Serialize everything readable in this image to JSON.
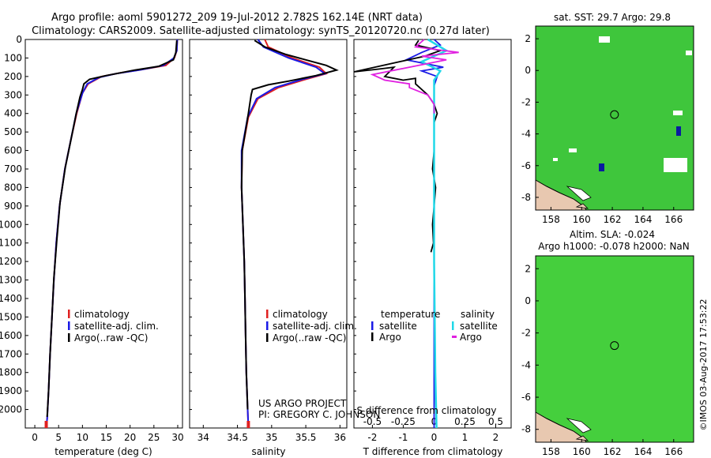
{
  "header": {
    "title_line1": "Argo profile: aoml 5901272_209 19-Jul-2012 2.782S 162.14E (NRT data)",
    "title_line2": "Climatology: CARS2009. Satellite-adjusted climatology: synTS_20120720.nc (0.27d later)"
  },
  "colors": {
    "climatology": "#e02020",
    "satellite": "#1a1ae6",
    "argo": "#000000",
    "argo_salinity": "#e020e0",
    "sat_salinity": "#20d8e8",
    "map_ocean": "#4ed24a",
    "land": "#e8c8b0"
  },
  "chart_data": [
    {
      "type": "line",
      "name": "temperature",
      "xlabel": "temperature (deg C)",
      "ylabel": "",
      "xlim": [
        -2,
        31
      ],
      "ylim": [
        2100,
        0
      ],
      "x_ticks": [
        "0",
        "5",
        "10",
        "15",
        "20",
        "25",
        "30"
      ],
      "y_ticks": [
        "0",
        "100",
        "200",
        "300",
        "400",
        "500",
        "600",
        "700",
        "800",
        "900",
        "1000",
        "1100",
        "1200",
        "1300",
        "1400",
        "1500",
        "1600",
        "1700",
        "1800",
        "1900",
        "2000"
      ],
      "legend": [
        "climatology",
        "satellite-adj. clim.",
        "Argo(..raw -QC)"
      ],
      "series": [
        {
          "name": "climatology",
          "points": [
            [
              29.9,
              0
            ],
            [
              29.8,
              60
            ],
            [
              29.3,
              100
            ],
            [
              27.5,
              140
            ],
            [
              23,
              160
            ],
            [
              18,
              180
            ],
            [
              14,
              200
            ],
            [
              11.2,
              240
            ],
            [
              10,
              290
            ],
            [
              8.8,
              400
            ],
            [
              7.5,
              550
            ],
            [
              6.3,
              700
            ],
            [
              5.2,
              900
            ],
            [
              4.5,
              1100
            ],
            [
              4,
              1300
            ],
            [
              3.6,
              1500
            ],
            [
              3.2,
              1700
            ],
            [
              2.9,
              1900
            ],
            [
              2.6,
              2050
            ],
            [
              2.4,
              2100
            ]
          ]
        },
        {
          "name": "satellite",
          "points": [
            [
              29.9,
              0
            ],
            [
              29.8,
              60
            ],
            [
              29.2,
              100
            ],
            [
              27,
              140
            ],
            [
              22,
              165
            ],
            [
              17,
              185
            ],
            [
              13.5,
              205
            ],
            [
              11,
              240
            ],
            [
              10,
              290
            ],
            [
              8.7,
              400
            ],
            [
              7.5,
              550
            ],
            [
              6.3,
              700
            ],
            [
              5.2,
              900
            ],
            [
              4.5,
              1100
            ],
            [
              4,
              1300
            ],
            [
              3.6,
              1500
            ],
            [
              3.2,
              1700
            ],
            [
              2.9,
              1900
            ],
            [
              2.6,
              2050
            ],
            [
              2.4,
              2100
            ]
          ]
        },
        {
          "name": "argo",
          "points": [
            [
              29.8,
              5
            ],
            [
              29.6,
              70
            ],
            [
              29.1,
              110
            ],
            [
              26,
              145
            ],
            [
              21,
              165
            ],
            [
              15,
              195
            ],
            [
              11.5,
              215
            ],
            [
              10.3,
              240
            ],
            [
              10,
              270
            ],
            [
              9.5,
              310
            ],
            [
              8.7,
              400
            ],
            [
              7.6,
              540
            ],
            [
              6.4,
              690
            ],
            [
              5.3,
              880
            ],
            [
              4.6,
              1090
            ],
            [
              4,
              1290
            ],
            [
              3.6,
              1500
            ],
            [
              3.2,
              1700
            ],
            [
              2.9,
              1900
            ],
            [
              2.6,
              2040
            ]
          ]
        }
      ]
    },
    {
      "type": "line",
      "name": "salinity",
      "xlabel": "salinity",
      "ylabel": "",
      "xlim": [
        33.8,
        36.1
      ],
      "ylim": [
        2100,
        0
      ],
      "x_ticks": [
        "34",
        "34.5",
        "35",
        "35.5",
        "36"
      ],
      "legend": [
        "climatology",
        "satellite-adj. clim.",
        "Argo(..raw -QC)"
      ],
      "annotation": [
        "US ARGO PROJECT",
        "PI: GREGORY C. JOHNSON"
      ],
      "series": [
        {
          "name": "climatology",
          "points": [
            [
              34.9,
              0
            ],
            [
              34.95,
              40
            ],
            [
              35.3,
              100
            ],
            [
              35.7,
              150
            ],
            [
              35.8,
              185
            ],
            [
              35.5,
              215
            ],
            [
              35.1,
              260
            ],
            [
              34.8,
              320
            ],
            [
              34.66,
              420
            ],
            [
              34.57,
              600
            ],
            [
              34.56,
              800
            ],
            [
              34.58,
              1000
            ],
            [
              34.6,
              1200
            ],
            [
              34.61,
              1400
            ],
            [
              34.62,
              1600
            ],
            [
              34.63,
              1800
            ],
            [
              34.65,
              2000
            ],
            [
              34.66,
              2100
            ]
          ]
        },
        {
          "name": "satellite",
          "points": [
            [
              34.8,
              0
            ],
            [
              34.88,
              40
            ],
            [
              35.25,
              100
            ],
            [
              35.65,
              150
            ],
            [
              35.78,
              185
            ],
            [
              35.45,
              215
            ],
            [
              35.05,
              260
            ],
            [
              34.78,
              320
            ],
            [
              34.65,
              420
            ],
            [
              34.56,
              600
            ],
            [
              34.56,
              800
            ],
            [
              34.58,
              1000
            ],
            [
              34.6,
              1200
            ],
            [
              34.61,
              1400
            ],
            [
              34.62,
              1600
            ],
            [
              34.63,
              1800
            ],
            [
              34.65,
              2000
            ],
            [
              34.66,
              2100
            ]
          ]
        },
        {
          "name": "argo",
          "points": [
            [
              34.75,
              5
            ],
            [
              34.9,
              40
            ],
            [
              35.2,
              80
            ],
            [
              35.5,
              110
            ],
            [
              35.8,
              140
            ],
            [
              35.95,
              165
            ],
            [
              35.65,
              195
            ],
            [
              35.25,
              225
            ],
            [
              34.95,
              245
            ],
            [
              34.72,
              270
            ],
            [
              34.7,
              300
            ],
            [
              34.66,
              400
            ],
            [
              34.57,
              600
            ],
            [
              34.56,
              800
            ],
            [
              34.58,
              1000
            ],
            [
              34.6,
              1200
            ],
            [
              34.61,
              1400
            ],
            [
              34.62,
              1600
            ],
            [
              34.63,
              1800
            ],
            [
              34.65,
              2000
            ]
          ]
        }
      ]
    },
    {
      "type": "line",
      "name": "difference",
      "xlabel": "T difference from climatology",
      "top_axis_label": "S difference from climatology",
      "xlim": [
        -2.6,
        2.5
      ],
      "ylim": [
        2100,
        0
      ],
      "x_ticks_T": [
        "-2",
        "-1",
        "0",
        "1",
        "2"
      ],
      "x_ticks_S": [
        "-0.5",
        "-0.25",
        "0",
        "0.25",
        "0.5"
      ],
      "legend": {
        "t_header": "temperature",
        "s_header": "salinity",
        "entries": [
          "satellite",
          "Argo",
          "satellite",
          "Argo"
        ]
      },
      "series": [
        {
          "name": "T satellite",
          "points": [
            [
              0,
              0
            ],
            [
              0.2,
              30
            ],
            [
              -0.4,
              70
            ],
            [
              -0.9,
              110
            ],
            [
              0.3,
              150
            ],
            [
              -0.4,
              170
            ],
            [
              0.1,
              200
            ],
            [
              0,
              250
            ],
            [
              0,
              400
            ],
            [
              0,
              700
            ],
            [
              0,
              1000
            ],
            [
              0,
              1500
            ],
            [
              0,
              2100
            ]
          ]
        },
        {
          "name": "T argo",
          "points": [
            [
              -0.5,
              5
            ],
            [
              -0.6,
              30
            ],
            [
              0.2,
              60
            ],
            [
              -0.3,
              90
            ],
            [
              -2.6,
              175
            ],
            [
              -1.8,
              160
            ],
            [
              -1.3,
              150
            ],
            [
              -1.6,
              200
            ],
            [
              -1.0,
              220
            ],
            [
              -0.6,
              210
            ],
            [
              -0.6,
              240
            ],
            [
              -0.2,
              300
            ],
            [
              0,
              350
            ],
            [
              0.1,
              400
            ],
            [
              0,
              450
            ],
            [
              0,
              500
            ],
            [
              0,
              600
            ],
            [
              -0.05,
              700
            ],
            [
              0.05,
              800
            ],
            [
              0,
              900
            ],
            [
              -0.05,
              1000
            ],
            [
              -0.02,
              1100
            ],
            [
              -0.1,
              1150
            ]
          ]
        },
        {
          "name": "S satellite",
          "points": [
            [
              -0.05,
              0
            ],
            [
              0.1,
              60
            ],
            [
              -0.1,
              120
            ],
            [
              0.05,
              170
            ],
            [
              0,
              220
            ],
            [
              0,
              300
            ],
            [
              0,
              600
            ],
            [
              0,
              1200
            ],
            [
              0.01,
              1800
            ],
            [
              0.02,
              2100
            ]
          ]
        },
        {
          "name": "S argo",
          "points": [
            [
              -0.08,
              0
            ],
            [
              -0.15,
              40
            ],
            [
              0.2,
              70
            ],
            [
              -0.1,
              90
            ],
            [
              0.1,
              110
            ],
            [
              -0.2,
              150
            ],
            [
              -0.5,
              190
            ],
            [
              -0.4,
              220
            ],
            [
              -0.2,
              240
            ],
            [
              -0.2,
              260
            ],
            [
              -0.05,
              300
            ],
            [
              0,
              350
            ],
            [
              0,
              400
            ]
          ]
        }
      ]
    },
    {
      "type": "heatmap",
      "name": "sst_map",
      "title": "sat. SST: 29.7  Argo: 29.8",
      "x_ticks": [
        "158",
        "160",
        "162",
        "164",
        "166"
      ],
      "y_ticks": [
        "2",
        "0",
        "-2",
        "-4",
        "-6",
        "-8"
      ],
      "xlim": [
        157,
        167.3
      ],
      "ylim": [
        -8.8,
        2.8
      ],
      "argo_position": [
        162.14,
        -2.782
      ]
    },
    {
      "type": "heatmap",
      "name": "sla_map",
      "title_line1": "Altim. SLA: -0.024",
      "title_line2": "Argo h1000: -0.078  h2000: NaN",
      "x_ticks": [
        "158",
        "160",
        "162",
        "164",
        "166"
      ],
      "y_ticks": [
        "2",
        "0",
        "-2",
        "-4",
        "-6",
        "-8"
      ],
      "xlim": [
        157,
        167.3
      ],
      "ylim": [
        -8.8,
        2.8
      ],
      "argo_position": [
        162.14,
        -2.782
      ]
    }
  ],
  "footer": {
    "stamp": "©IMOS 03-Aug-2017 17:53:22"
  }
}
